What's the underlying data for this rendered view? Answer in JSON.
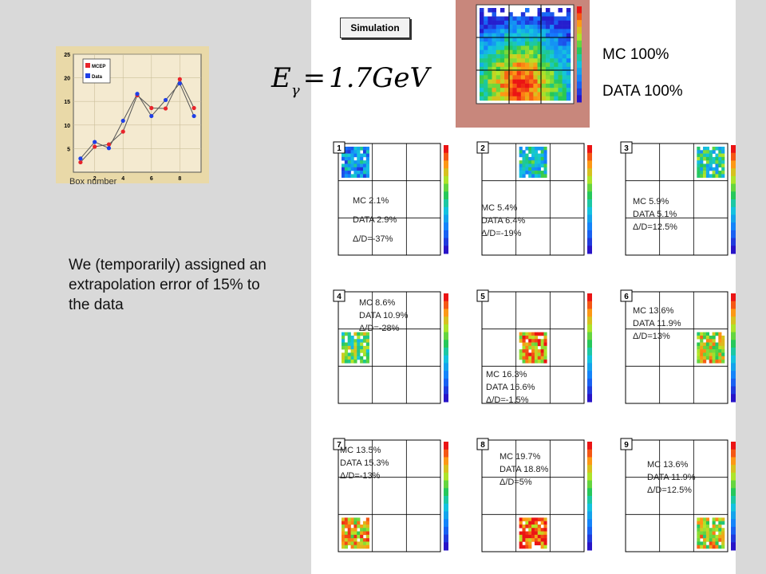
{
  "description": "We (temporarily) assigned an extrapolation error of 15% to the data",
  "simulation_badge": "Simulation",
  "formula": {
    "symbol": "E",
    "subscript": "γ",
    "equals": "=",
    "value": "1.7GeV"
  },
  "top_summary": {
    "mc": "MC 100%",
    "data": "DATA 100%"
  },
  "box_number_label": "Box number",
  "colors": {
    "mc": "#e8242a",
    "data": "#1f3fe6",
    "slide_bg": "#d9d9d9",
    "plot_bg": "#c8877c"
  },
  "chart_data": {
    "type": "line",
    "xlabel": "Box number",
    "x": [
      1,
      2,
      3,
      4,
      5,
      6,
      7,
      8,
      9
    ],
    "ylim": [
      0,
      25
    ],
    "xlim": [
      0.5,
      9.5
    ],
    "x_ticks": [
      "2",
      "4",
      "6",
      "8"
    ],
    "y_ticks": [
      "5",
      "10",
      "15",
      "20",
      "25"
    ],
    "series": [
      {
        "name": "MCEP",
        "values": [
          2.1,
          5.4,
          5.9,
          8.6,
          16.3,
          13.6,
          13.5,
          19.7,
          13.6
        ]
      },
      {
        "name": "Data",
        "values": [
          2.9,
          6.4,
          5.1,
          10.9,
          16.6,
          11.9,
          15.3,
          18.8,
          11.9
        ]
      }
    ]
  },
  "panels": [
    {
      "box": "1",
      "mc": "MC  2.1%",
      "data": "DATA 2.9%",
      "delta": "Δ/D=-37%"
    },
    {
      "box": "2",
      "mc": "MC  5.4%",
      "data": "DATA 6.4%",
      "delta": "Δ/D=-19%"
    },
    {
      "box": "3",
      "mc": "MC  5.9%",
      "data": "DATA 5.1%",
      "delta": "Δ/D=12.5%"
    },
    {
      "box": "4",
      "mc": "MC  8.6%",
      "data": "DATA 10.9%",
      "delta": "Δ/D=-28%"
    },
    {
      "box": "5",
      "mc": "MC  16.3%",
      "data": "DATA 16.6%",
      "delta": "Δ/D=-1.5%"
    },
    {
      "box": "6",
      "mc": "MC  13.6%",
      "data": "DATA 11.9%",
      "delta": "Δ/D=13%"
    },
    {
      "box": "7",
      "mc": "MC  13.5%",
      "data": "DATA 15.3%",
      "delta": "Δ/D=-13%"
    },
    {
      "box": "8",
      "mc": "MC  19.7%",
      "data": "DATA 18.8%",
      "delta": "Δ/D=5%"
    },
    {
      "box": "9",
      "mc": "MC  13.6%",
      "data": "DATA 11.9%",
      "delta": "Δ/D=12.5%"
    }
  ]
}
